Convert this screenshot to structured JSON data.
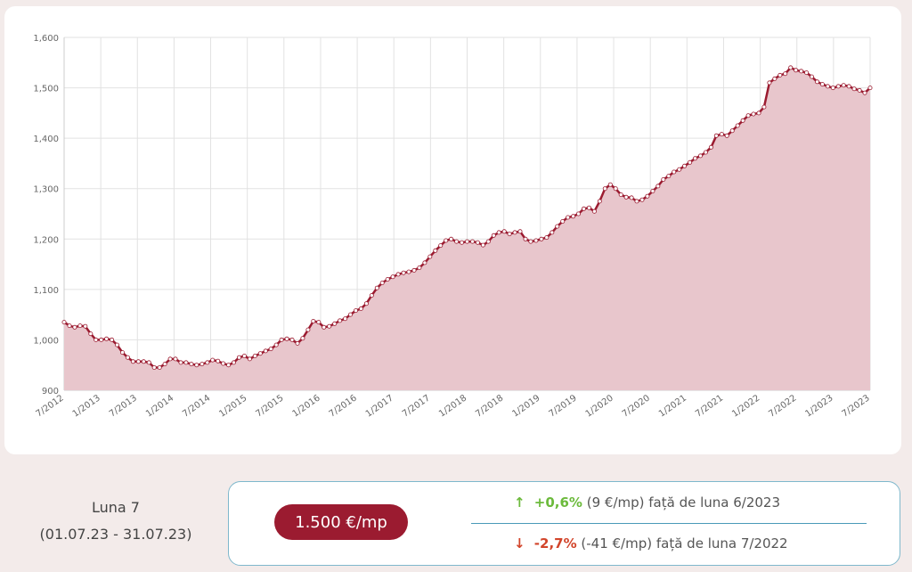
{
  "chart_data": {
    "type": "area",
    "title": "",
    "xlabel": "",
    "ylabel": "",
    "ylim": [
      900,
      1600
    ],
    "yticks": [
      "900",
      "1,000",
      "1,100",
      "1,200",
      "1,300",
      "1,400",
      "1,500",
      "1,600"
    ],
    "xticks": [
      "7/2012",
      "1/2013",
      "7/2013",
      "1/2014",
      "7/2014",
      "1/2015",
      "7/2015",
      "1/2016",
      "7/2016",
      "1/2017",
      "7/2017",
      "1/2018",
      "7/2018",
      "1/2019",
      "7/2019",
      "1/2020",
      "7/2020",
      "1/2021",
      "7/2021",
      "1/2022",
      "7/2022",
      "1/2023",
      "7/2023"
    ],
    "x_start": "7/2012",
    "x_end": "7/2023",
    "grid": true,
    "line_color": "#9b1b30",
    "fill_color": "#e8c6cc",
    "values": [
      1035,
      1028,
      1025,
      1028,
      1027,
      1012,
      1000,
      1000,
      1002,
      1000,
      990,
      975,
      965,
      957,
      957,
      957,
      955,
      945,
      945,
      952,
      962,
      962,
      955,
      955,
      952,
      950,
      952,
      955,
      960,
      958,
      953,
      950,
      955,
      965,
      968,
      962,
      968,
      973,
      978,
      982,
      990,
      1000,
      1002,
      1000,
      993,
      1003,
      1020,
      1037,
      1035,
      1025,
      1027,
      1032,
      1038,
      1042,
      1050,
      1058,
      1062,
      1072,
      1088,
      1103,
      1113,
      1120,
      1125,
      1130,
      1133,
      1135,
      1138,
      1143,
      1153,
      1165,
      1177,
      1187,
      1197,
      1200,
      1195,
      1193,
      1195,
      1195,
      1193,
      1188,
      1195,
      1207,
      1213,
      1215,
      1210,
      1213,
      1215,
      1200,
      1195,
      1197,
      1200,
      1203,
      1213,
      1225,
      1235,
      1243,
      1245,
      1250,
      1260,
      1262,
      1255,
      1275,
      1300,
      1308,
      1300,
      1288,
      1283,
      1282,
      1275,
      1278,
      1285,
      1295,
      1305,
      1318,
      1325,
      1333,
      1338,
      1345,
      1352,
      1360,
      1365,
      1372,
      1382,
      1405,
      1408,
      1405,
      1415,
      1425,
      1435,
      1445,
      1448,
      1450,
      1462,
      1510,
      1518,
      1525,
      1528,
      1540,
      1535,
      1533,
      1530,
      1522,
      1512,
      1507,
      1503,
      1500,
      1503,
      1505,
      1503,
      1498,
      1495,
      1490,
      1500
    ]
  },
  "summary": {
    "period_label": "Luna 7",
    "period_range": "(01.07.23 - 31.07.23)",
    "price": "1.500 €/mp",
    "up_arrow": "↑",
    "up_pct": "+0,6%",
    "up_text": "(9 €/mp) față de luna 6/2023",
    "down_arrow": "↓",
    "down_pct": "-2,7%",
    "down_text": "(-41 €/mp) față de luna 7/2022",
    "up_color": "#6cba3c",
    "down_color": "#d2452b",
    "badge_color": "#9b1b30"
  }
}
